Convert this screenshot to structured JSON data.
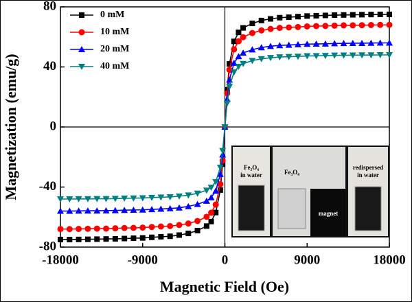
{
  "chart_data": {
    "type": "line",
    "x_label": "Magnetic Field (Oe)",
    "y_label": "Magnetization (emu/g)",
    "x": [
      -18000,
      -17000,
      -16000,
      -15000,
      -14000,
      -13000,
      -12000,
      -11000,
      -10000,
      -9000,
      -8000,
      -7000,
      -6000,
      -5000,
      -4000,
      -3000,
      -2000,
      -1500,
      -1000,
      -500,
      -250,
      0,
      250,
      500,
      1000,
      1500,
      2000,
      3000,
      4000,
      5000,
      6000,
      7000,
      8000,
      9000,
      10000,
      11000,
      12000,
      13000,
      14000,
      15000,
      16000,
      17000,
      18000
    ],
    "series": [
      {
        "name": "0 mM",
        "color": "#000000",
        "marker": "square",
        "values": [
          -75,
          -75,
          -74.9,
          -74.8,
          -74.7,
          -74.6,
          -74.5,
          -74.3,
          -74.1,
          -73.9,
          -73.5,
          -73.1,
          -72.8,
          -72,
          -70.9,
          -69,
          -66,
          -63,
          -57,
          -42,
          -24.8,
          0,
          24.8,
          42,
          57,
          63,
          66,
          69,
          70.9,
          72,
          72.8,
          73.1,
          73.5,
          73.9,
          74.1,
          74.3,
          74.5,
          74.6,
          74.7,
          74.8,
          74.9,
          75,
          75
        ]
      },
      {
        "name": "10 mM",
        "color": "#ff0000",
        "marker": "circle",
        "values": [
          -68,
          -68,
          -67.9,
          -67.8,
          -67.7,
          -67.7,
          -67.5,
          -67.3,
          -67.2,
          -67,
          -66.6,
          -66.3,
          -66,
          -65.3,
          -64.3,
          -62.6,
          -59.8,
          -57.1,
          -51.7,
          -38.1,
          -22.4,
          0,
          22.4,
          38.1,
          51.7,
          57.1,
          59.8,
          62.6,
          64.3,
          65.3,
          66,
          66.3,
          66.6,
          67,
          67.2,
          67.3,
          67.5,
          67.7,
          67.7,
          67.8,
          67.9,
          68,
          68
        ]
      },
      {
        "name": "20 mM",
        "color": "#0000ff",
        "marker": "triangle-up",
        "values": [
          -56,
          -56,
          -55.9,
          -55.8,
          -55.8,
          -55.7,
          -55.6,
          -55.4,
          -55.3,
          -55.2,
          -54.9,
          -54.6,
          -54.3,
          -53.8,
          -52.9,
          -51.5,
          -49.3,
          -47,
          -42.6,
          -31.4,
          -18.5,
          0,
          18.5,
          31.4,
          42.6,
          47,
          49.3,
          51.5,
          52.9,
          53.8,
          54.3,
          54.6,
          54.9,
          55.2,
          55.3,
          55.4,
          55.6,
          55.7,
          55.8,
          55.8,
          55.9,
          56,
          56
        ]
      },
      {
        "name": "40 mM",
        "color": "#008080",
        "marker": "triangle-down",
        "values": [
          -48,
          -48,
          -47.9,
          -47.9,
          -47.8,
          -47.8,
          -47.7,
          -47.5,
          -47.4,
          -47.3,
          -47,
          -46.8,
          -46.6,
          -46.1,
          -45.4,
          -44.2,
          -42.2,
          -40.3,
          -36.5,
          -26.9,
          -15.8,
          0,
          15.8,
          26.9,
          36.5,
          40.3,
          42.2,
          44.2,
          45.4,
          46.1,
          46.6,
          46.8,
          47,
          47.3,
          47.4,
          47.5,
          47.7,
          47.8,
          47.8,
          47.9,
          47.9,
          48,
          48
        ]
      }
    ],
    "xlim": [
      -18000,
      18000
    ],
    "xticks": [
      -18000,
      -9000,
      0,
      9000,
      18000
    ],
    "ylim": [
      -80,
      80
    ],
    "yticks": [
      -80,
      -40,
      0,
      40,
      80
    ],
    "legend": "top-left",
    "inset": {
      "labels": [
        [
          "Fe₃O₄",
          "in water"
        ],
        [
          "Fe₃O₄"
        ],
        [
          "magnet"
        ],
        [
          "redispersed",
          "in water"
        ]
      ]
    }
  }
}
